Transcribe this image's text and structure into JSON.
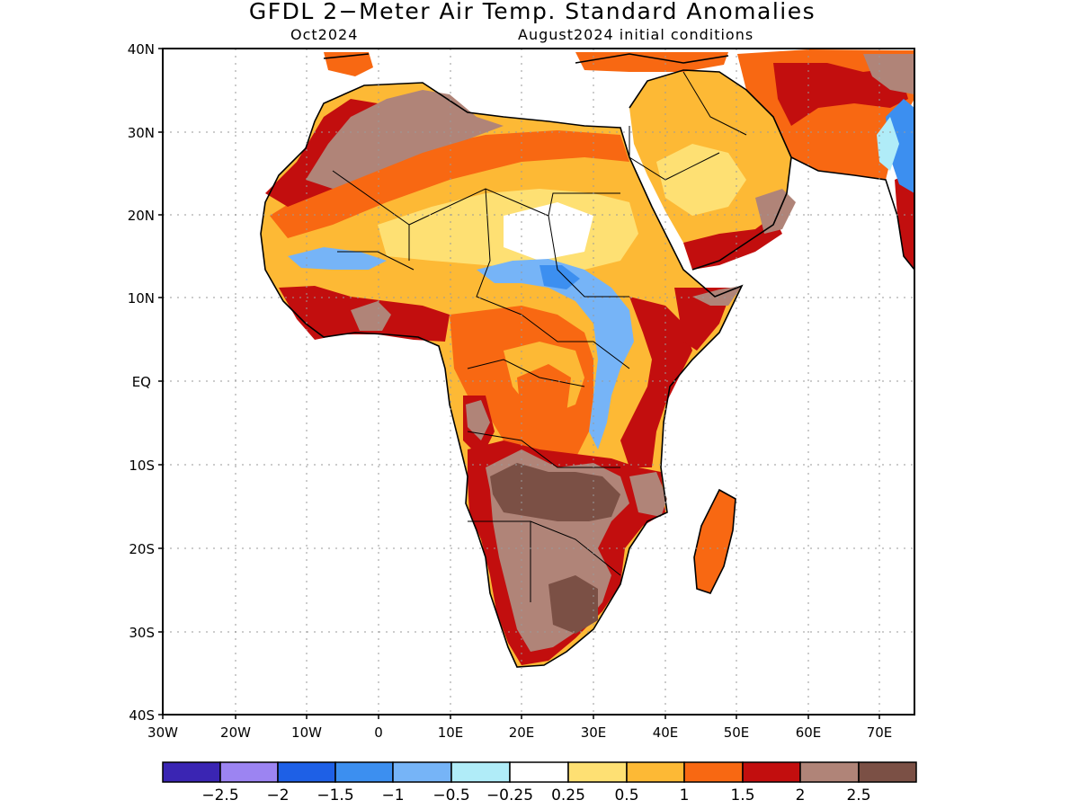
{
  "title": "GFDL 2−Meter Air Temp. Standard Anomalies",
  "forecast_month": "Oct2024",
  "initial_conditions": "August2024 initial conditions",
  "map": {
    "lat_labels": [
      "40N",
      "30N",
      "20N",
      "10N",
      "EQ",
      "10S",
      "20S",
      "30S",
      "40S"
    ],
    "lon_labels": [
      "30W",
      "20W",
      "10W",
      "0",
      "10E",
      "20E",
      "30E",
      "40E",
      "50E",
      "60E",
      "70E"
    ],
    "extent": {
      "lon_min": -30,
      "lon_max": 75,
      "lat_min": -40,
      "lat_max": 40
    }
  },
  "colorbar": {
    "colors": [
      "#3a25b3",
      "#9c84f2",
      "#1e60e6",
      "#3c8ff0",
      "#76b4f7",
      "#b0ecf8",
      "#ffffff",
      "#fee073",
      "#fdb935",
      "#f86812",
      "#c20e0e",
      "#b08478",
      "#7b5045"
    ],
    "labels": [
      "−2.5",
      "−2",
      "−1.5",
      "−1",
      "−0.5",
      "−0.25",
      "0.25",
      "0.5",
      "1",
      "1.5",
      "2",
      "2.5"
    ]
  }
}
